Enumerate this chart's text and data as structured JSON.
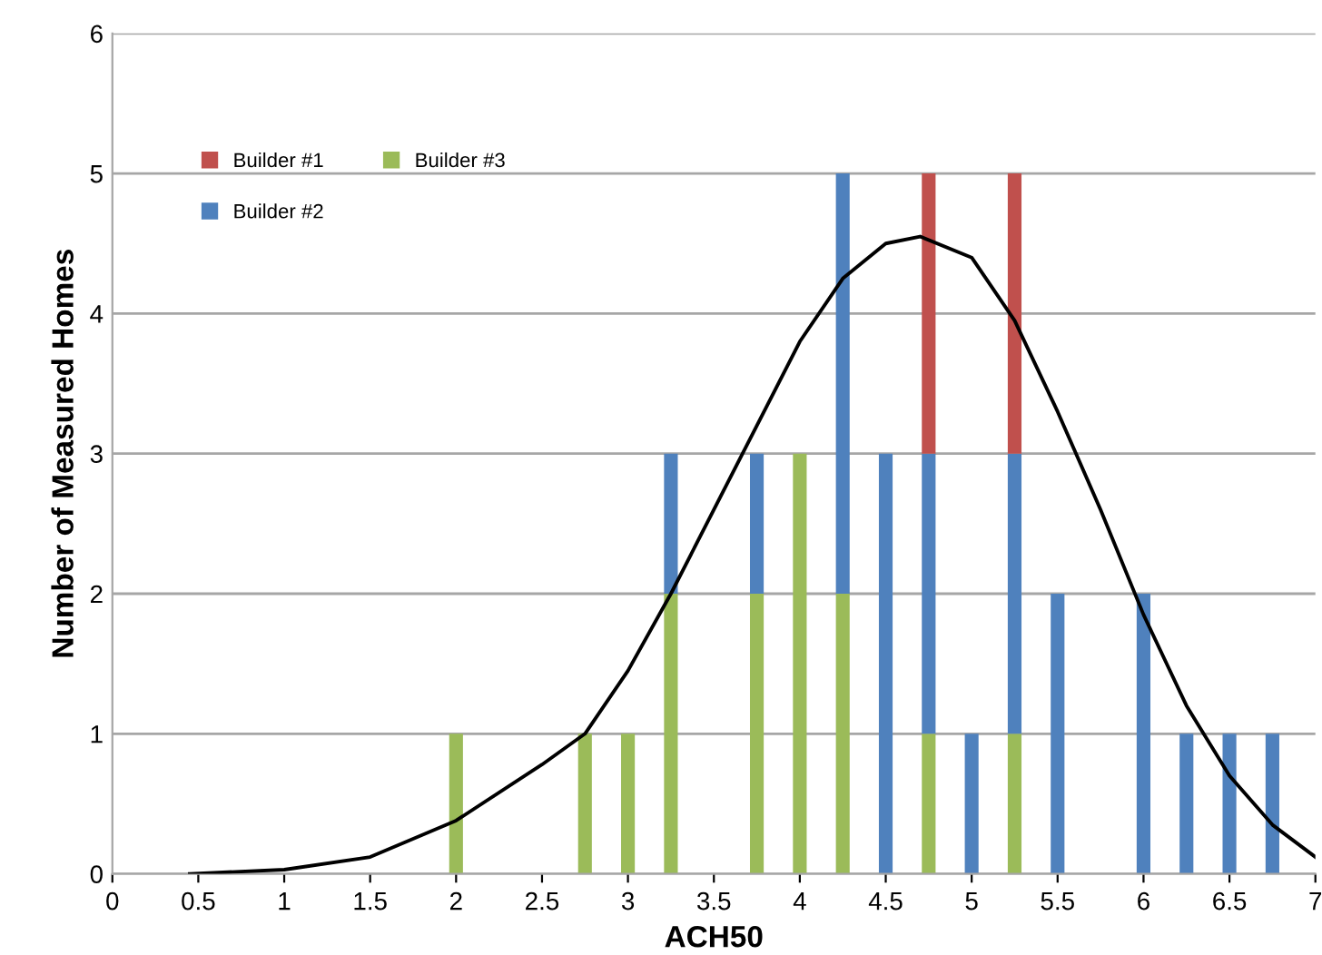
{
  "chart_data": {
    "type": "bar",
    "stacked": true,
    "xlabel": "ACH50",
    "ylabel": "Number of Measured Homes",
    "x": [
      2,
      2.75,
      3,
      3.25,
      3.75,
      4,
      4.25,
      4.5,
      4.75,
      5,
      5.25,
      5.5,
      6,
      6.25,
      6.5,
      6.75
    ],
    "series": [
      {
        "name": "Builder #3",
        "color": "#9bbb59",
        "values": [
          1,
          1,
          1,
          2,
          2,
          3,
          2,
          null,
          1,
          null,
          1,
          null,
          null,
          null,
          null,
          null
        ]
      },
      {
        "name": "Builder #2",
        "color": "#4f81bd",
        "values": [
          null,
          null,
          null,
          1,
          1,
          null,
          3,
          3,
          2,
          1,
          2,
          2,
          2,
          1,
          1,
          1
        ]
      },
      {
        "name": "Builder #1",
        "color": "#c0504d",
        "values": [
          null,
          null,
          null,
          null,
          null,
          null,
          null,
          null,
          2,
          null,
          2,
          null,
          null,
          null,
          null,
          null
        ]
      },
      {
        "type": "line",
        "color": "#000000",
        "marker": "none",
        "x": [
          0.45,
          1,
          1.5,
          2,
          2.5,
          2.75,
          3,
          3.25,
          3.5,
          3.75,
          4,
          4.25,
          4.5,
          4.7,
          5,
          5.25,
          5.5,
          5.75,
          6,
          6.25,
          6.5,
          6.75,
          7
        ],
        "values": [
          0,
          0.03,
          0.12,
          0.38,
          0.78,
          1.0,
          1.45,
          2.0,
          2.6,
          3.2,
          3.8,
          4.25,
          4.5,
          4.55,
          4.4,
          3.95,
          3.3,
          2.6,
          1.85,
          1.2,
          0.7,
          0.35,
          0.12
        ]
      }
    ],
    "xlim": [
      0,
      7
    ],
    "xticks": [
      0,
      {
        "value": 0.5,
        "label": "0.5"
      },
      1,
      {
        "value": 1.5,
        "label": "1.5"
      },
      2,
      {
        "value": 2.5,
        "label": "2.5"
      },
      3,
      {
        "value": 3.5,
        "label": "3.5"
      },
      4,
      {
        "value": 4.5,
        "label": "4.5"
      },
      5,
      {
        "value": 5.5,
        "label": "5.5"
      },
      6,
      {
        "value": 6.5,
        "label": "6.5"
      },
      7
    ],
    "ylim": [
      0,
      6
    ],
    "yticks": [
      0,
      1,
      2,
      3,
      4,
      5,
      6
    ],
    "grid": "y",
    "legend": "top left"
  }
}
